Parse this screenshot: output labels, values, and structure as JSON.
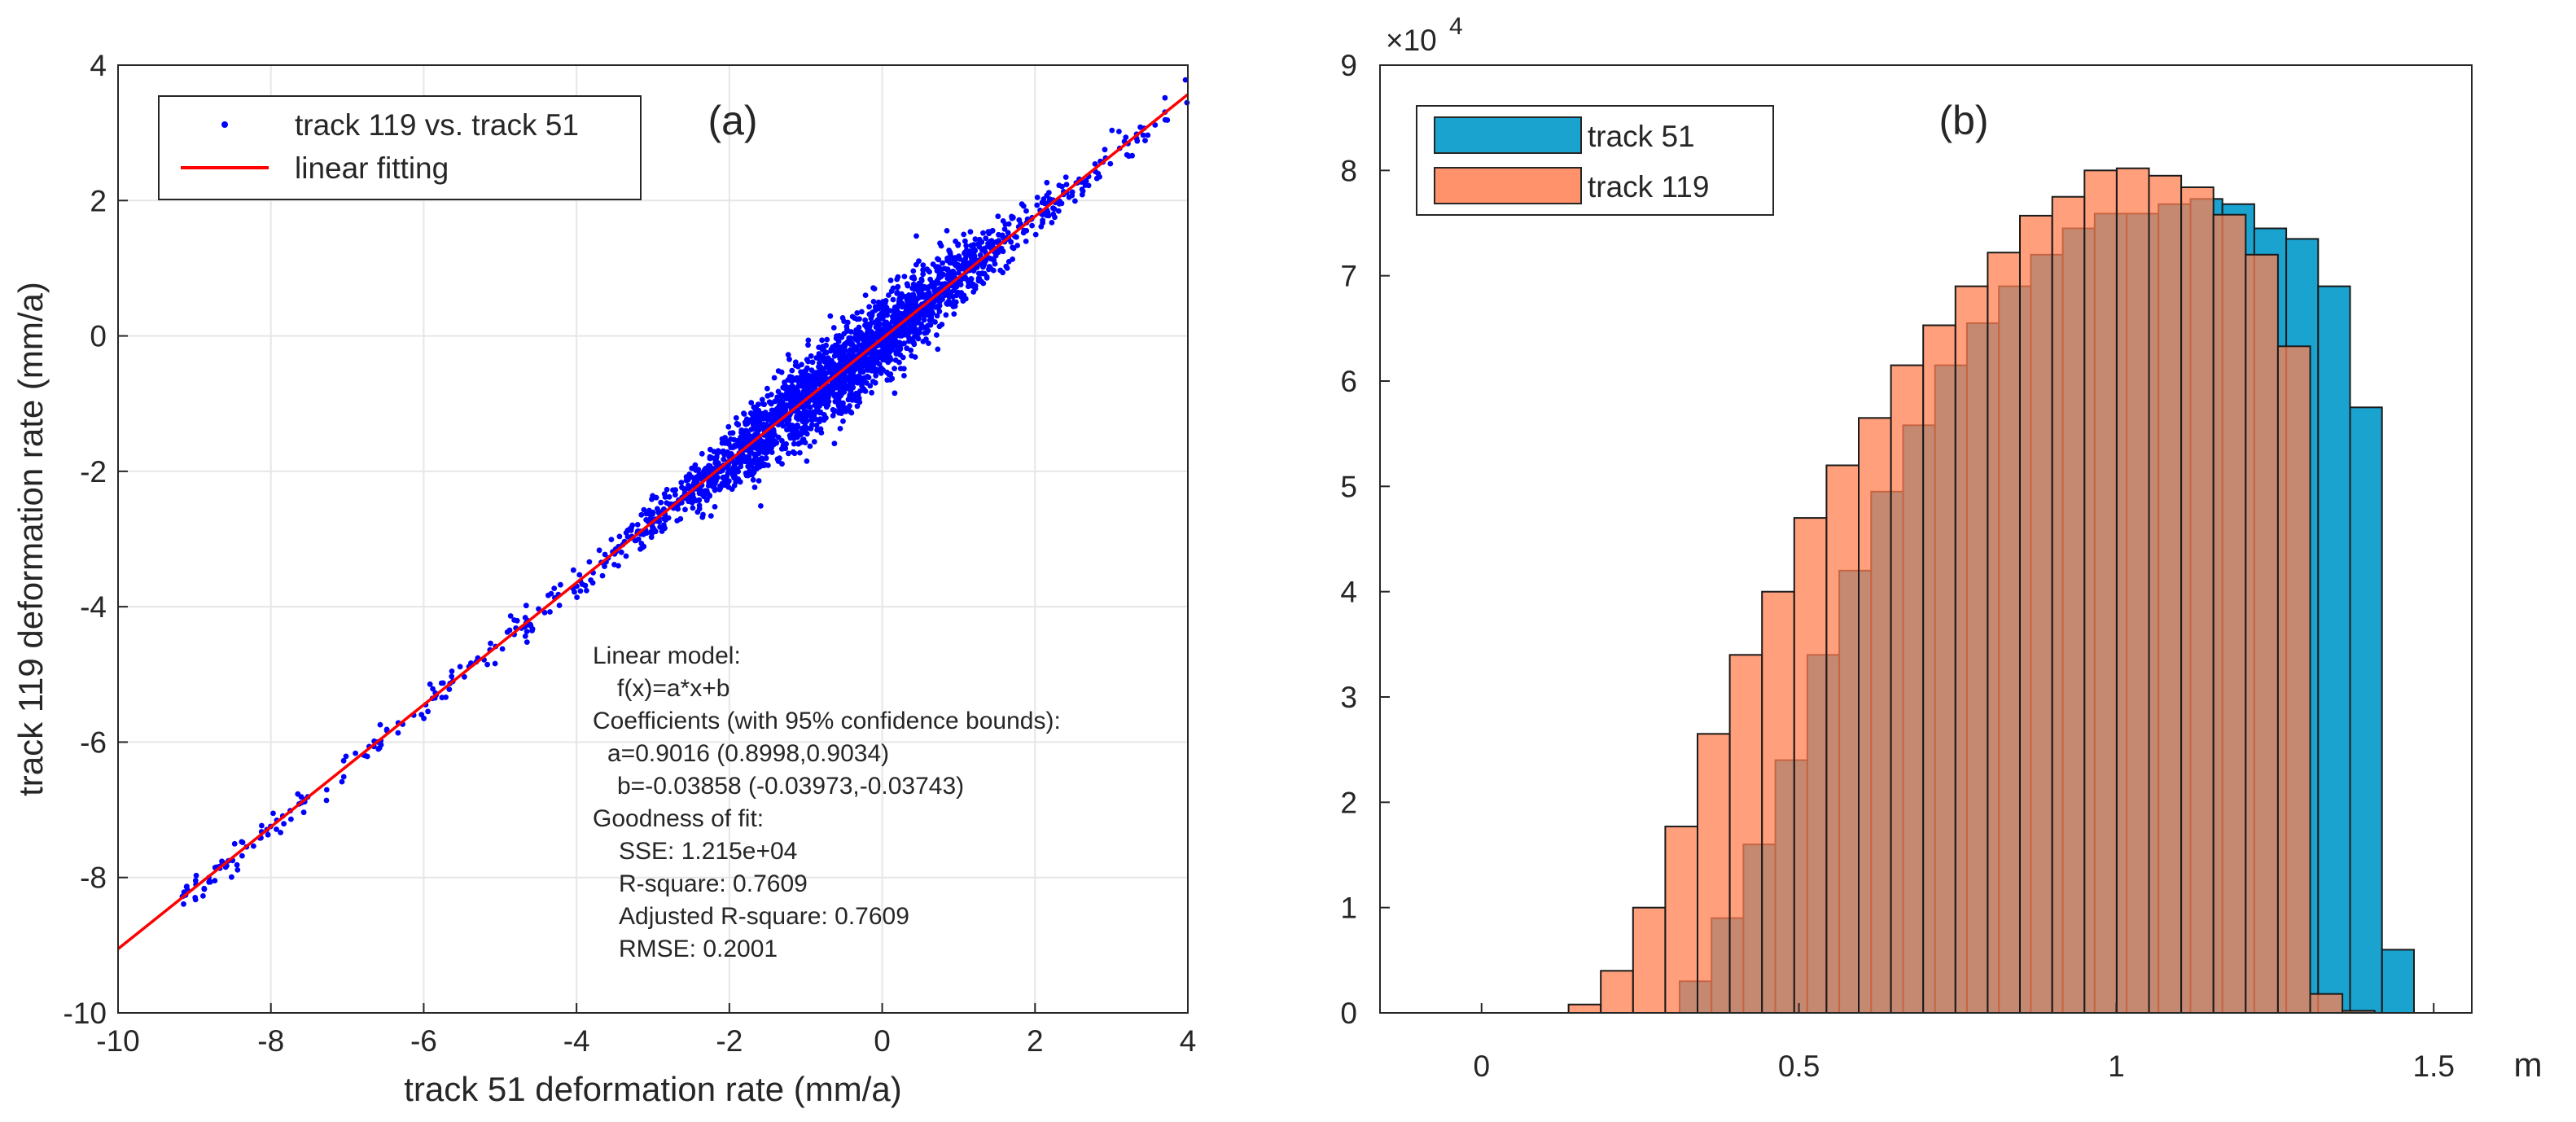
{
  "chart_data": [
    {
      "type": "scatter",
      "panel_tag": "(a)",
      "xlabel": "track 51 deformation rate (mm/a)",
      "ylabel": "track 119 deformation rate (mm/a)",
      "xlim": [
        -10,
        4
      ],
      "ylim": [
        -10,
        4
      ],
      "xticks": [
        -10,
        -8,
        -6,
        -4,
        -2,
        0,
        2,
        4
      ],
      "yticks": [
        -10,
        -8,
        -6,
        -4,
        -2,
        0,
        2,
        4
      ],
      "grid": true,
      "legend": {
        "location": "top-left",
        "entries": [
          "track 119 vs. track 51",
          "linear fitting"
        ]
      },
      "series": [
        {
          "name": "track 119 vs. track 51",
          "kind": "points",
          "color": "#0000ff",
          "x_range": [
            -9.2,
            4.0
          ],
          "slope": 0.9016,
          "intercept": -0.03858,
          "spread_sd": 0.2001
        }
      ],
      "fit_line": {
        "name": "linear fitting",
        "color": "#ff0000",
        "slope": 0.9016,
        "intercept": -0.03858,
        "x_range": [
          -10,
          4
        ]
      },
      "annotation_lines": [
        "Linear model:",
        "f(x)=a*x+b",
        "Coefficients (with 95% confidence bounds):",
        "a=0.9016 (0.8998,0.9034)",
        "b=-0.03858 (-0.03973,-0.03743)",
        "Goodness of fit:",
        "SSE: 1.215e+04",
        "R-square: 0.7609",
        "Adjusted R-square: 0.7609",
        "RMSE: 0.2001"
      ]
    },
    {
      "type": "bar",
      "subtype": "histogram",
      "panel_tag": "(b)",
      "xlabel": "m",
      "xlim": [
        -0.16,
        1.56
      ],
      "ylim": [
        0,
        90000
      ],
      "xticks": [
        0,
        0.5,
        1,
        1.5
      ],
      "xtick_labels": [
        "0",
        "0.5",
        "1",
        "1.5"
      ],
      "yticks": [
        0,
        10000,
        20000,
        30000,
        40000,
        50000,
        60000,
        70000,
        80000,
        90000
      ],
      "ytick_labels": [
        "0",
        "1",
        "2",
        "3",
        "4",
        "5",
        "6",
        "7",
        "8",
        "9"
      ],
      "y_exponent_base": "×10",
      "y_exponent_power": "4",
      "grid": false,
      "legend": {
        "location": "top-left",
        "entries": [
          "track 51",
          "track 119"
        ]
      },
      "series": [
        {
          "name": "track 51",
          "color": "#1aa3cf",
          "bin_start": 0.312,
          "bin_width": 0.0503,
          "values": [
            3000,
            9000,
            16000,
            24000,
            34000,
            42000,
            49500,
            55800,
            61500,
            65500,
            69000,
            72000,
            74500,
            75900,
            75900,
            76800,
            77300,
            76800,
            74500,
            73500,
            69000,
            57500,
            6000
          ]
        },
        {
          "name": "track 119",
          "color": "#ff7f50",
          "opacity": 0.75,
          "bin_start": 0.137,
          "bin_width": 0.0508,
          "values": [
            800,
            4000,
            10000,
            17700,
            26500,
            34000,
            40000,
            47000,
            52000,
            56500,
            61500,
            65300,
            69000,
            72200,
            75700,
            77500,
            80000,
            80200,
            79500,
            78400,
            75800,
            72000,
            63300,
            1800,
            200
          ]
        }
      ]
    }
  ]
}
